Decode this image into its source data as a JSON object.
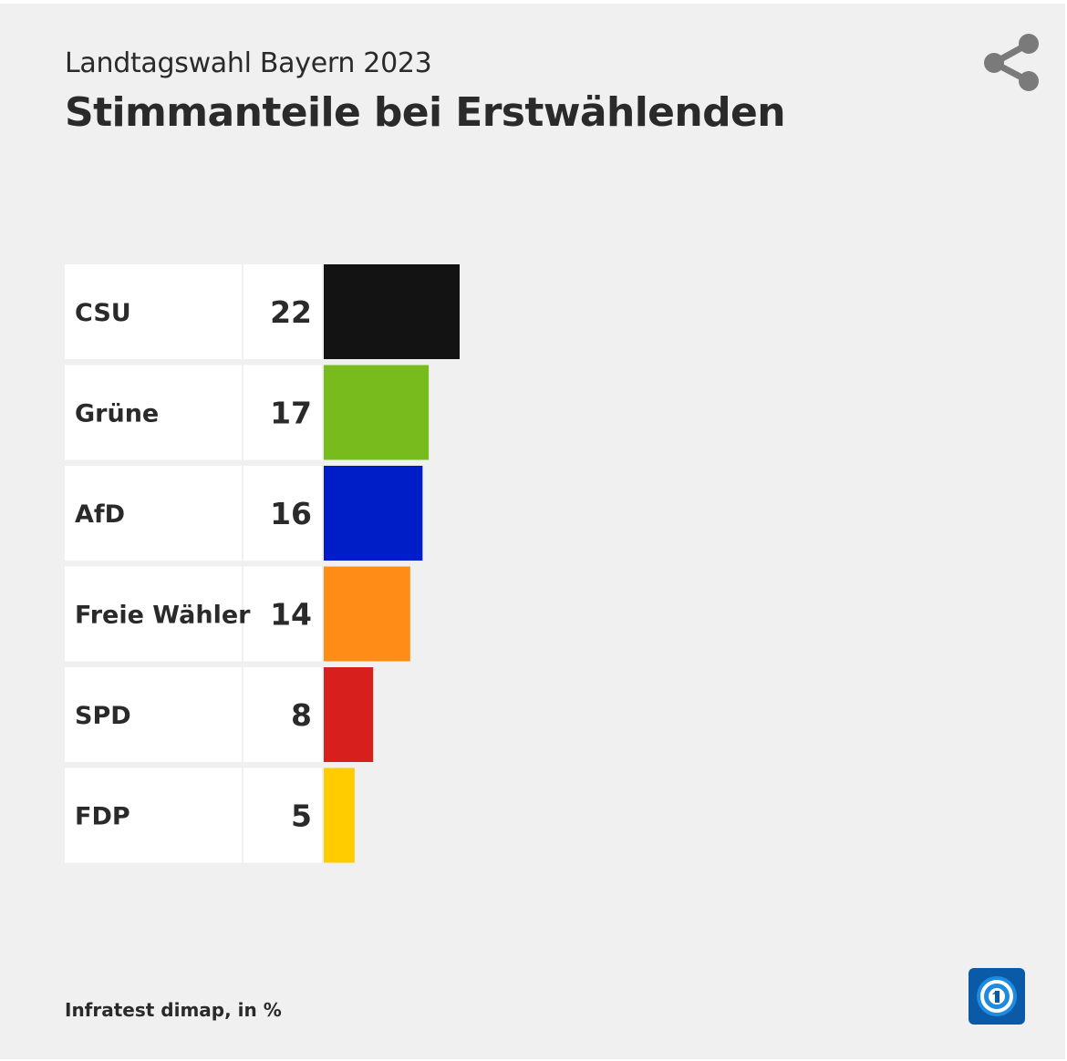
{
  "header": {
    "subtitle": "Landtagswahl Bayern 2023",
    "title": "Stimmanteile bei Erstwählenden"
  },
  "footer": {
    "source": "Infratest dimap, in %"
  },
  "icons": {
    "share": "share-icon",
    "logo": "tagesschau-logo"
  },
  "colors": {
    "background": "#f0f0f0",
    "text": "#2a2a2a",
    "share_icon": "#7a7a7a",
    "logo_blue": "#0b5aa8"
  },
  "chart_data": {
    "type": "bar",
    "orientation": "horizontal",
    "title": "Stimmanteile bei Erstwählenden",
    "subtitle": "Landtagswahl Bayern 2023",
    "unit": "%",
    "categories": [
      "CSU",
      "Grüne",
      "AfD",
      "Freie Wähler",
      "SPD",
      "FDP"
    ],
    "values": [
      22,
      17,
      16,
      14,
      8,
      5
    ],
    "colors": [
      "#131313",
      "#78bb1c",
      "#001ec8",
      "#ff8c17",
      "#d7201e",
      "#ffcc00"
    ],
    "xlim": [
      0,
      22
    ],
    "grid": false,
    "legend": "none"
  }
}
